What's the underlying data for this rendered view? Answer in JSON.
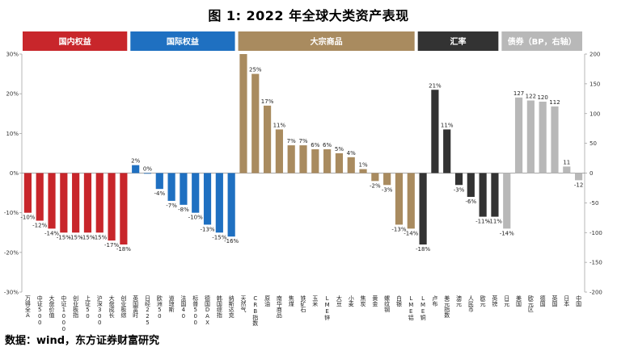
{
  "title": "图 1: 2022 年全球大类资产表现",
  "source": "数据：wind，东方证券财富研究",
  "chart_data": {
    "type": "bar",
    "title": "图 1: 2022 年全球大类资产表现",
    "xlabel": "",
    "ylabel": "",
    "grid": false,
    "y_left": {
      "ylim": [
        -30,
        30
      ],
      "ticks": [
        "30%",
        "20%",
        "10%",
        "0%",
        "-10%",
        "-20%",
        "-30%"
      ]
    },
    "y_right": {
      "ylim": [
        -200,
        200
      ],
      "ticks": [
        "200",
        "150",
        "100",
        "50",
        "0",
        "-50",
        "-100",
        "-150",
        "-200"
      ]
    },
    "sections": [
      {
        "label": "国内权益",
        "color": "#c8262b",
        "start": 0,
        "end": 9
      },
      {
        "label": "国际权益",
        "color": "#1f70c1",
        "start": 9,
        "end": 18
      },
      {
        "label": "大宗商品",
        "color": "#a98b5f",
        "start": 18,
        "end": 33
      },
      {
        "label": "汇率",
        "color": "#333333",
        "start": 33,
        "end": 40
      },
      {
        "label": "债券（BP，右轴）",
        "color": "#b8b8b8",
        "start": 40,
        "end": 47
      }
    ],
    "categories": [
      "万得全A",
      "中证500",
      "大盘价值",
      "中证1000",
      "创业板指",
      "上证50",
      "沪深300",
      "大盘成长",
      "创业板综",
      "英国富时",
      "日经225",
      "欧洲50",
      "道琼斯",
      "法国40",
      "标普500",
      "德国DAX",
      "韩国综指",
      "纳斯达克",
      "天然气",
      "CRB指数",
      "原油",
      "南华商品",
      "焦煤",
      "铁矿石",
      "玉米",
      "LME锌",
      "大豆",
      "小麦",
      "焦炭",
      "黄金",
      "螺纹钢",
      "白银",
      "LME铝",
      "LME铜",
      "卢布",
      "美元指数",
      "澳元",
      "人民币",
      "欧元",
      "英镑",
      "日元",
      "美国",
      "欧元区",
      "德国",
      "英国",
      "日本",
      "中国"
    ],
    "values": [
      -10,
      -12,
      -14,
      -15,
      -15,
      -15,
      -15,
      -17,
      -18,
      2,
      0,
      -4,
      -7,
      -8,
      -10,
      -13,
      -15,
      -16,
      30,
      25,
      17,
      11,
      7,
      7,
      6,
      6,
      5,
      4,
      1,
      -2,
      -3,
      -13,
      -14,
      -18,
      21,
      11,
      -3,
      -6,
      -11,
      -11,
      -14,
      127,
      122,
      120,
      112,
      11,
      -12
    ],
    "labels": [
      "-10%",
      "-12%",
      "-14%",
      "-15%",
      "-15%",
      "-15%",
      "-15%",
      "-17%",
      "-18%",
      "2%",
      "0%",
      "-4%",
      "-7%",
      "-8%",
      "-10%",
      "-13%",
      "-15%",
      "-16%",
      "",
      "25%",
      "17%",
      "11%",
      "7%",
      "7%",
      "6%",
      "6%",
      "5%",
      "4%",
      "1%",
      "-2%",
      "-3%",
      "-13%",
      "-14%",
      "-18%",
      "21%",
      "11%",
      "-3%",
      "-6%",
      "-11%",
      "-11%",
      "-14%",
      "127",
      "122",
      "120",
      "112",
      "11",
      "-12"
    ],
    "axis": [
      "left",
      "left",
      "left",
      "left",
      "left",
      "left",
      "left",
      "left",
      "left",
      "left",
      "left",
      "left",
      "left",
      "left",
      "left",
      "left",
      "left",
      "left",
      "left",
      "left",
      "left",
      "left",
      "left",
      "left",
      "left",
      "left",
      "left",
      "left",
      "left",
      "left",
      "left",
      "left",
      "left",
      "left",
      "left",
      "left",
      "left",
      "left",
      "left",
      "left",
      "left",
      "right",
      "right",
      "right",
      "right",
      "right",
      "right"
    ],
    "series_colors": {
      "domestic": "#c8262b",
      "international": "#1f70c1",
      "commodity": "#a98b5f",
      "fx": "#333333",
      "bond": "#b8b8b8"
    }
  }
}
